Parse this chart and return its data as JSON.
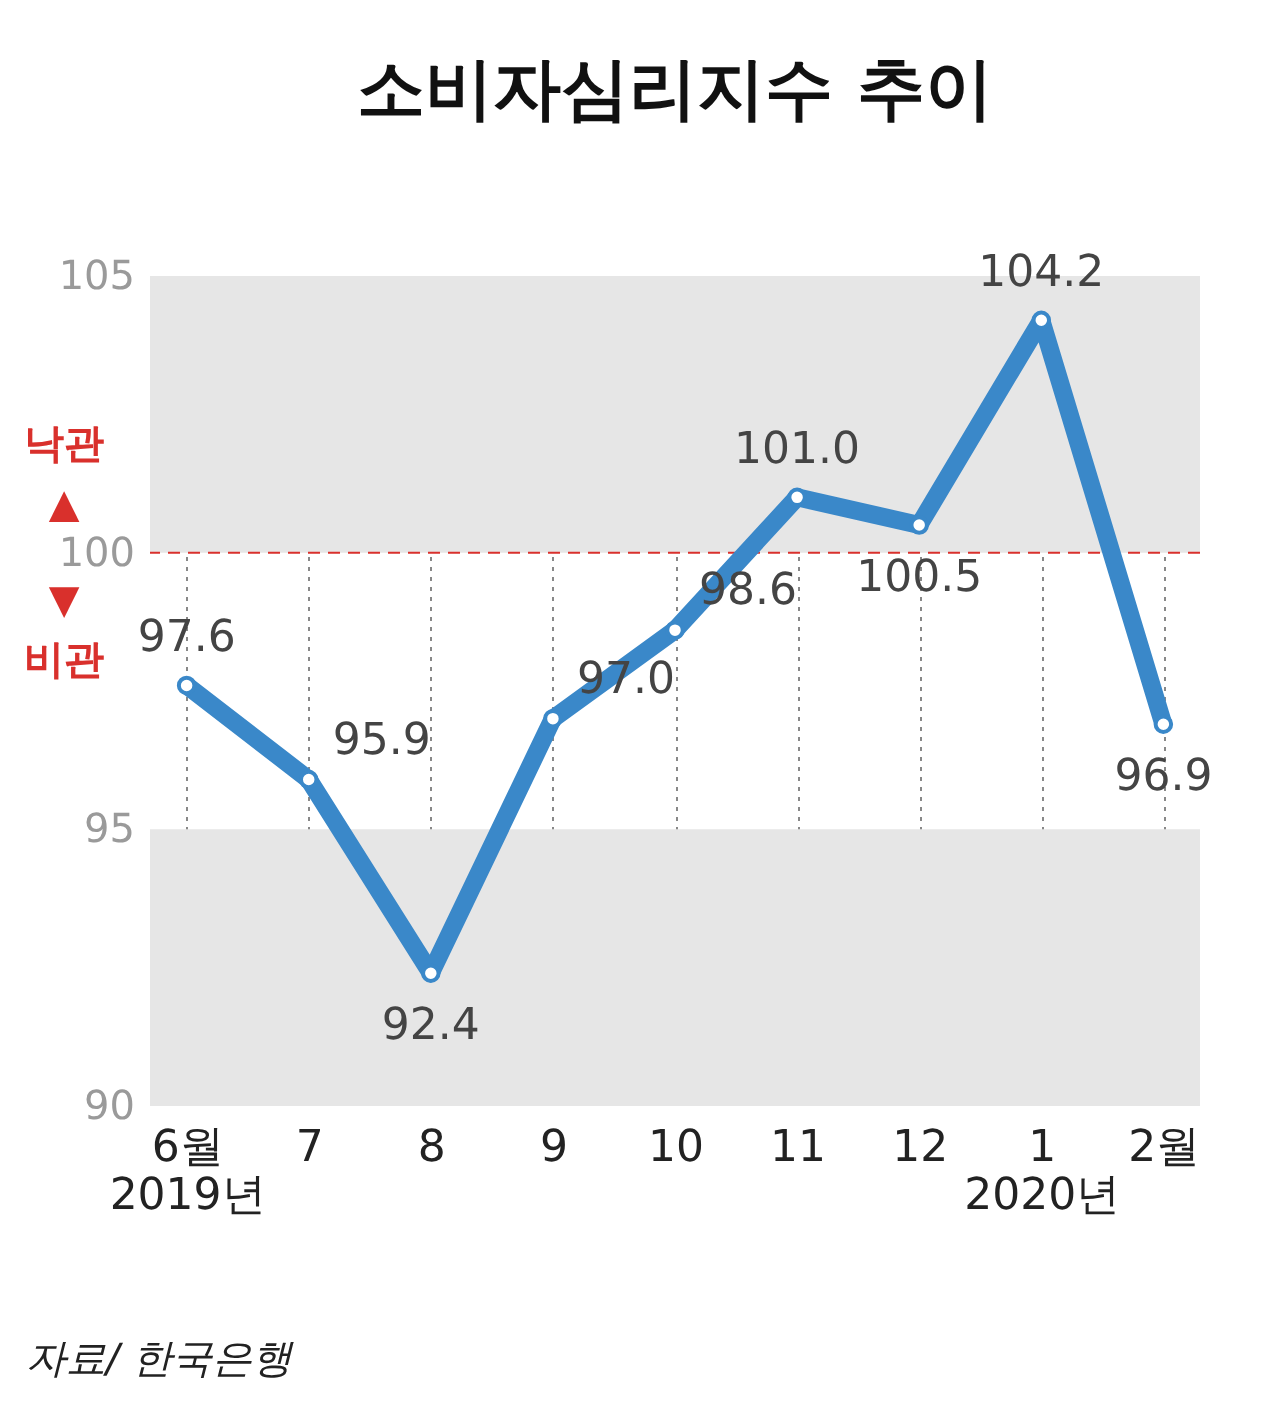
{
  "chart_data": {
    "type": "line",
    "title": "소비자심리지수 추이",
    "categories": [
      "6월\n2019년",
      "7",
      "8",
      "9",
      "10",
      "11",
      "12",
      "1\n2020년",
      "2월"
    ],
    "series": [
      {
        "color": "#3a88c9",
        "values": [
          97.6,
          95.9,
          92.4,
          97.0,
          98.6,
          101.0,
          100.5,
          104.2,
          96.9
        ],
        "value_labels": [
          "97.6",
          "95.9",
          "92.4",
          "97.0",
          "98.6",
          "101.0",
          "100.5",
          "104.2",
          "96.9"
        ]
      }
    ],
    "ylim": [
      90,
      105
    ],
    "yticks": [
      90,
      95,
      100,
      105
    ],
    "grid": "x",
    "marker": "circle",
    "ref_lines": [
      {
        "axis": "y",
        "value": 100,
        "color": "#d9302c",
        "line_style": "dashed"
      }
    ],
    "bands": [
      {
        "axis": "y",
        "from": 90,
        "to": 95,
        "color": "#e6e6e6"
      },
      {
        "axis": "y",
        "from": 100,
        "to": 105,
        "color": "#e6e6e6"
      }
    ],
    "annotations": [
      "낙관",
      "▲",
      "▼",
      "비관",
      "자료/ 한국은행"
    ]
  }
}
